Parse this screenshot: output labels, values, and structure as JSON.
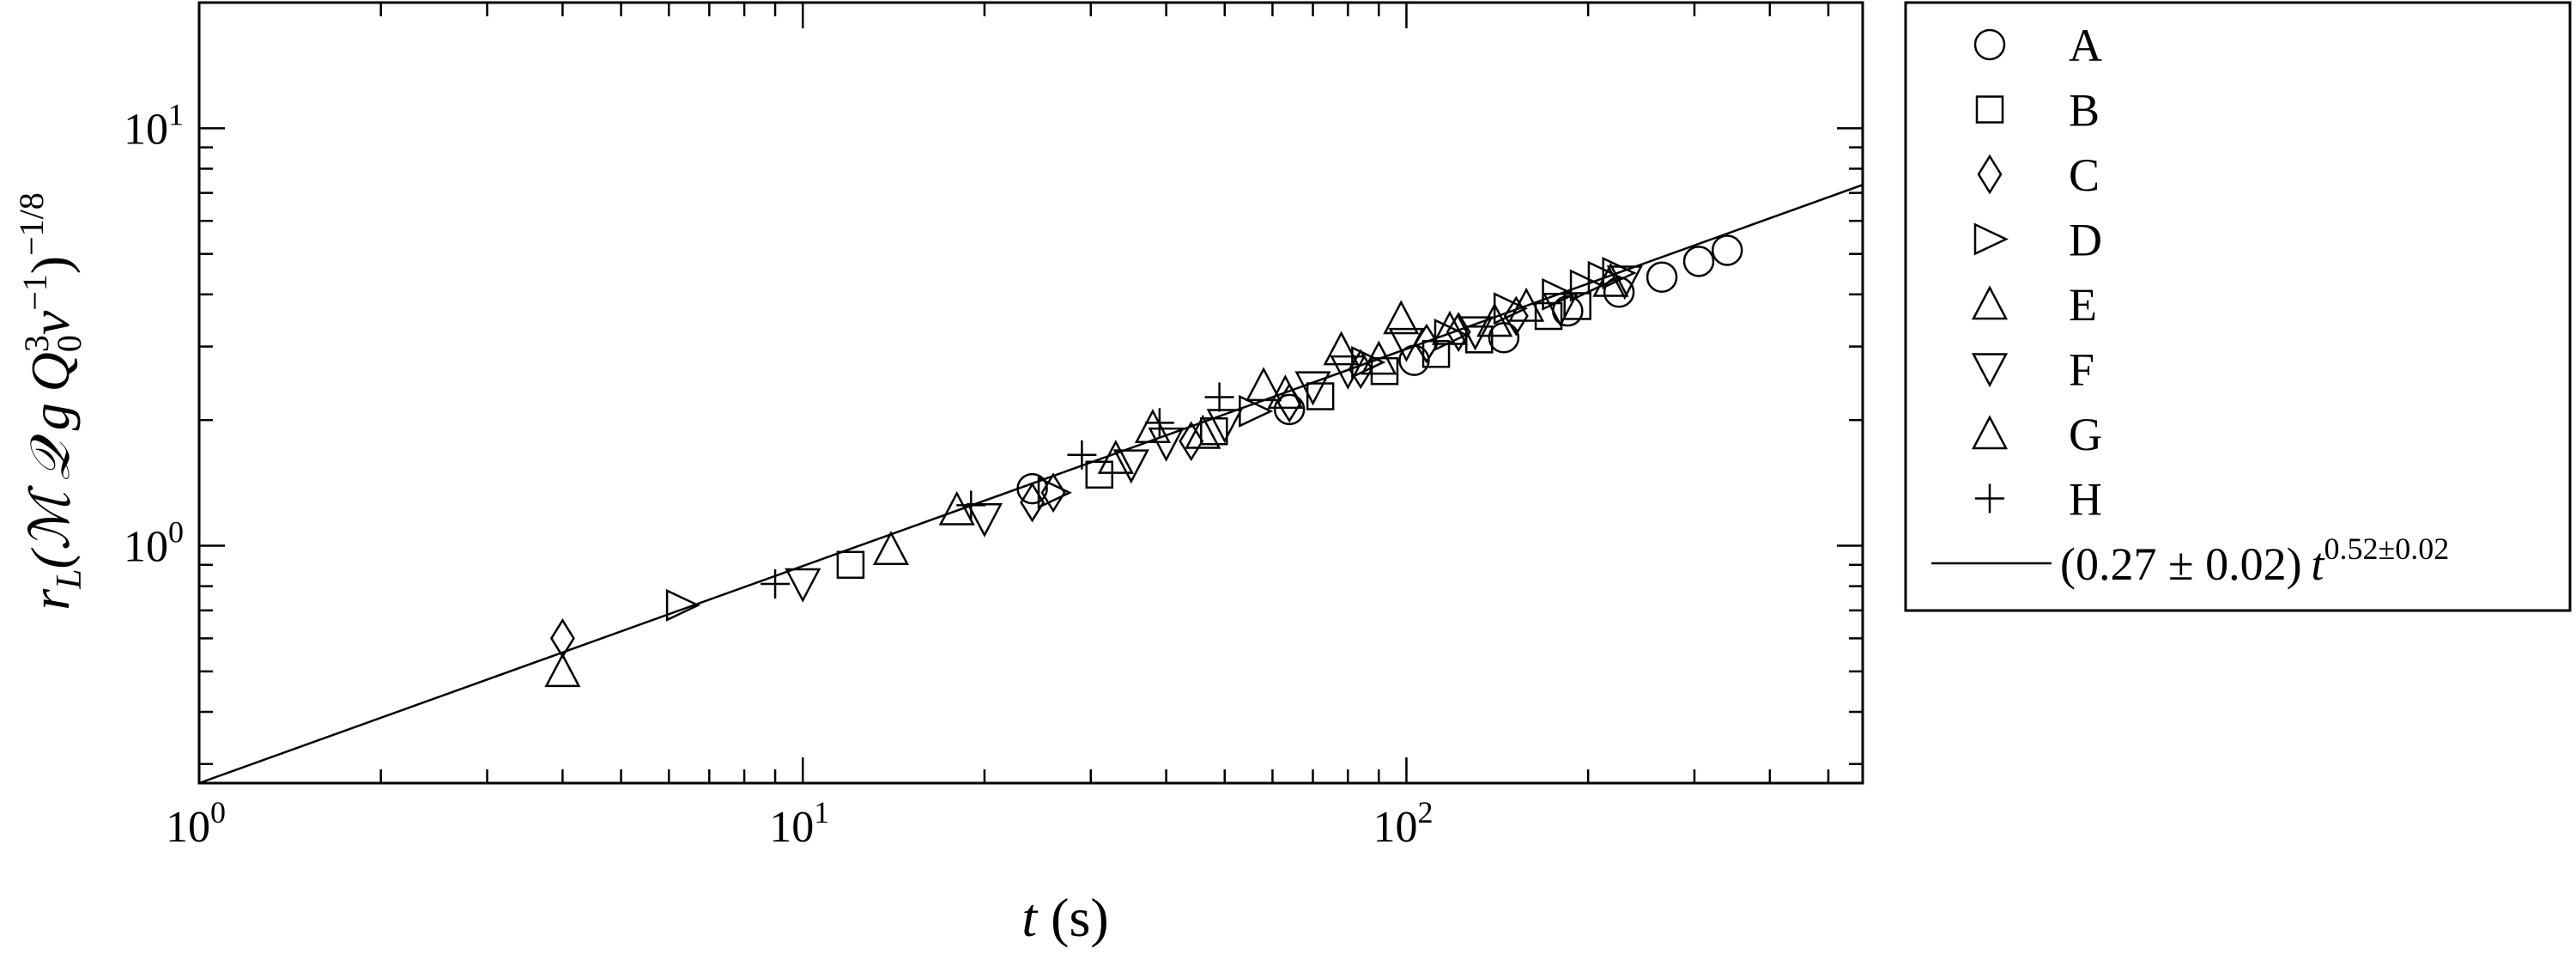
{
  "chart_data": {
    "type": "scatter",
    "xscale": "log",
    "yscale": "log",
    "xlim": [
      1,
      570
    ],
    "ylim": [
      0.27,
      20
    ],
    "grid": false,
    "legend_position": "outside-right",
    "xlabel": {
      "italic": "t",
      "rest": " (s)"
    },
    "ylabel": {
      "main": "r",
      "sub": "L",
      "body": "(ℳ 𝒬 g Q",
      "sub2": "0",
      "sup2": "3",
      "body2": "ν",
      "sup3": "−1",
      "close": ")",
      "sup4": "−1/8"
    },
    "x_ticks": [
      {
        "base": "10",
        "exp": "0",
        "value": 1
      },
      {
        "base": "10",
        "exp": "1",
        "value": 10
      },
      {
        "base": "10",
        "exp": "2",
        "value": 100
      }
    ],
    "y_ticks": [
      {
        "base": "10",
        "exp": "0",
        "value": 1
      },
      {
        "base": "10",
        "exp": "1",
        "value": 10
      }
    ],
    "series": [
      {
        "name": "A",
        "marker": "circle",
        "points": [
          [
            24,
            1.37
          ],
          [
            64,
            2.12
          ],
          [
            103,
            2.78
          ],
          [
            145,
            3.15
          ],
          [
            185,
            3.65
          ],
          [
            225,
            4.05
          ],
          [
            265,
            4.4
          ],
          [
            305,
            4.8
          ],
          [
            340,
            5.1
          ]
        ]
      },
      {
        "name": "B",
        "marker": "square",
        "points": [
          [
            12,
            0.9
          ],
          [
            31,
            1.48
          ],
          [
            48,
            1.88
          ],
          [
            72,
            2.28
          ],
          [
            92,
            2.62
          ],
          [
            112,
            2.88
          ],
          [
            132,
            3.12
          ],
          [
            172,
            3.55
          ],
          [
            192,
            3.75
          ]
        ]
      },
      {
        "name": "C",
        "marker": "diamond",
        "points": [
          [
            4,
            0.6
          ],
          [
            24,
            1.27
          ],
          [
            26,
            1.34
          ],
          [
            44,
            1.78
          ],
          [
            64,
            2.2
          ],
          [
            84,
            2.65
          ],
          [
            108,
            3.05
          ],
          [
            122,
            3.25
          ],
          [
            152,
            3.55
          ]
        ]
      },
      {
        "name": "D",
        "marker": "triangle-right",
        "points": [
          [
            6.3,
            0.72
          ],
          [
            26,
            1.34
          ],
          [
            56,
            2.1
          ],
          [
            86,
            2.75
          ],
          [
            118,
            3.2
          ],
          [
            148,
            3.7
          ],
          [
            178,
            4.0
          ],
          [
            198,
            4.2
          ],
          [
            212,
            4.4
          ],
          [
            224,
            4.5
          ]
        ]
      },
      {
        "name": "E",
        "marker": "triangle-up",
        "points": [
          [
            4,
            0.5
          ],
          [
            14,
            0.98
          ],
          [
            18,
            1.22
          ],
          [
            58,
            2.42
          ],
          [
            78,
            2.95
          ],
          [
            98,
            3.5
          ],
          [
            118,
            3.3
          ],
          [
            158,
            3.75
          ],
          [
            218,
            4.3
          ]
        ]
      },
      {
        "name": "F",
        "marker": "triangle-down",
        "points": [
          [
            10,
            0.81
          ],
          [
            20,
            1.16
          ],
          [
            35,
            1.56
          ],
          [
            40,
            1.76
          ],
          [
            50,
            1.95
          ],
          [
            70,
            2.4
          ],
          [
            80,
            2.62
          ],
          [
            100,
            3.05
          ],
          [
            130,
            3.25
          ],
          [
            180,
            3.7
          ],
          [
            230,
            4.3
          ]
        ]
      },
      {
        "name": "G",
        "marker": "triangle-up",
        "points": [
          [
            33,
            1.62
          ],
          [
            38,
            1.92
          ],
          [
            46,
            1.86
          ],
          [
            63,
            2.32
          ],
          [
            90,
            2.8
          ],
          [
            140,
            3.45
          ]
        ]
      },
      {
        "name": "H",
        "marker": "plus",
        "points": [
          [
            9,
            0.81
          ],
          [
            19,
            1.25
          ],
          [
            29,
            1.65
          ],
          [
            39,
            1.97
          ],
          [
            49,
            2.27
          ]
        ]
      }
    ],
    "fit": {
      "label_pre": "(0.27 ± 0.02)",
      "label_var": "t",
      "label_sup": "0.52±0.02",
      "coefficient": 0.27,
      "exponent": 0.52
    }
  }
}
